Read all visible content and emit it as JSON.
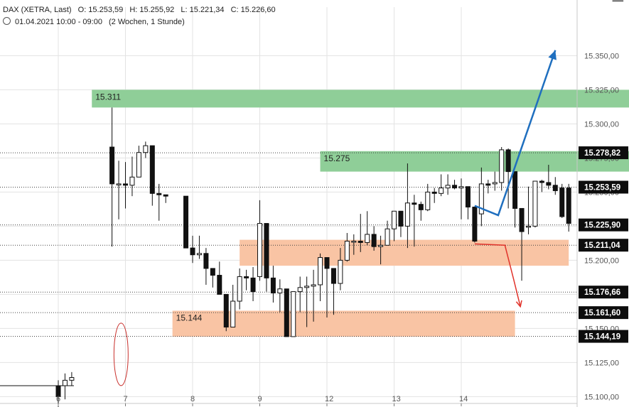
{
  "header": {
    "symbol": "DAX (XETRA, Last)",
    "open": "O: 15.253,59",
    "high": "H: 15.255,92",
    "low": "L: 15.221,34",
    "close": "C: 15.226,60",
    "range": "01.04.2021 10:00 - 09:00",
    "period": "(2 Wochen, 1 Stunde)"
  },
  "chart_data": {
    "type": "candlestick",
    "ylim": [
      15095,
      15370
    ],
    "y_ticks": [
      {
        "value": 15100,
        "label": "15.100,00"
      },
      {
        "value": 15125,
        "label": "15.125,00"
      },
      {
        "value": 15150,
        "label": "15.150,00"
      },
      {
        "value": 15175,
        "label": "15.175,00"
      },
      {
        "value": 15200,
        "label": "15.200,00"
      },
      {
        "value": 15225,
        "label": "15.225,00"
      },
      {
        "value": 15250,
        "label": "15.250,00"
      },
      {
        "value": 15275,
        "label": "15.275,00"
      },
      {
        "value": 15300,
        "label": "15.300,00"
      },
      {
        "value": 15325,
        "label": "15.325,00"
      },
      {
        "value": 15350,
        "label": "15.350,00"
      }
    ],
    "x_ticks": [
      "6",
      "7",
      "8",
      "9",
      "12",
      "13",
      "14"
    ],
    "price_levels": [
      {
        "value": 15278.82,
        "label": "15.278,82"
      },
      {
        "value": 15253.59,
        "label": "15.253,59"
      },
      {
        "value": 15225.9,
        "label": "15.225,90"
      },
      {
        "value": 15211.04,
        "label": "15.211,04"
      },
      {
        "value": 15176.66,
        "label": "15.176,66"
      },
      {
        "value": 15161.6,
        "label": "15.161,60"
      },
      {
        "value": 15144.19,
        "label": "15.144,19"
      }
    ],
    "zones": [
      {
        "from": 15312,
        "to": 15325,
        "color": "#8fce98",
        "label": "15.311",
        "x_from": 0.5,
        "x_to": 8.5
      },
      {
        "from": 15265,
        "to": 15280,
        "color": "#8fce98",
        "label": "15.275",
        "x_from": 3.9,
        "x_to": 8.5
      },
      {
        "from": 15196,
        "to": 15215,
        "color": "#f9c4a4",
        "label": "",
        "x_from": 2.7,
        "x_to": 7.6
      },
      {
        "from": 15144,
        "to": 15163,
        "color": "#f9c4a4",
        "label": "15.144",
        "x_from": 1.7,
        "x_to": 6.8
      }
    ],
    "candles": [
      [
        0.0,
        15108,
        15100,
        15112,
        15085
      ],
      [
        0.1,
        15108,
        15112,
        15117,
        15098
      ],
      [
        0.2,
        15112,
        15114,
        15118,
        15108
      ],
      [
        0.8,
        15283,
        15256,
        15312,
        15210
      ],
      [
        0.9,
        15256,
        15256,
        15273,
        15230
      ],
      [
        1.0,
        15256,
        15255,
        15272,
        15238
      ],
      [
        1.1,
        15255,
        15261,
        15276,
        15247
      ],
      [
        1.2,
        15261,
        15279,
        15284,
        15261
      ],
      [
        1.3,
        15279,
        15284,
        15287,
        15275
      ],
      [
        1.4,
        15284,
        15249,
        15284,
        15240
      ],
      [
        1.5,
        15249,
        15248,
        15256,
        15229
      ],
      [
        1.6,
        15248,
        15247,
        15248,
        15242
      ],
      [
        1.9,
        15247,
        15209,
        15247,
        15209
      ],
      [
        2.0,
        15209,
        15204,
        15218,
        15198
      ],
      [
        2.1,
        15204,
        15205,
        15218,
        15201
      ],
      [
        2.2,
        15205,
        15194,
        15209,
        15182
      ],
      [
        2.3,
        15194,
        15189,
        15194,
        15180
      ],
      [
        2.4,
        15189,
        15175,
        15199,
        15175
      ],
      [
        2.5,
        15175,
        15151,
        15175,
        15148
      ],
      [
        2.6,
        15151,
        15170,
        15182,
        15151
      ],
      [
        2.7,
        15170,
        15188,
        15194,
        15164
      ],
      [
        2.8,
        15188,
        15187,
        15193,
        15178
      ],
      [
        2.9,
        15187,
        15177,
        15195,
        15170
      ],
      [
        3.0,
        15188,
        15227,
        15244,
        15185
      ],
      [
        3.1,
        15227,
        15187,
        15227,
        15177
      ],
      [
        3.2,
        15187,
        15176,
        15196,
        15169
      ],
      [
        3.3,
        15176,
        15179,
        15186,
        15162
      ],
      [
        3.4,
        15179,
        15144,
        15179,
        15144
      ],
      [
        3.5,
        15144,
        15177,
        15177,
        15144
      ],
      [
        3.6,
        15177,
        15180,
        15188,
        15162
      ],
      [
        3.7,
        15180,
        15181,
        15188,
        15151
      ],
      [
        3.8,
        15181,
        15182,
        15193,
        15155
      ],
      [
        3.9,
        15182,
        15202,
        15205,
        15170
      ],
      [
        4.0,
        15202,
        15194,
        15202,
        15158
      ],
      [
        4.1,
        15194,
        15183,
        15194,
        15160
      ],
      [
        4.2,
        15183,
        15200,
        15209,
        15178
      ],
      [
        4.3,
        15200,
        15214,
        15220,
        15199
      ],
      [
        4.4,
        15214,
        15214,
        15219,
        15204
      ],
      [
        4.5,
        15214,
        15213,
        15234,
        15206
      ],
      [
        4.6,
        15213,
        15219,
        15236,
        15211
      ],
      [
        4.7,
        15219,
        15210,
        15225,
        15207
      ],
      [
        4.8,
        15210,
        15211,
        15218,
        15197
      ],
      [
        4.9,
        15211,
        15223,
        15229,
        15211
      ],
      [
        5.0,
        15223,
        15236,
        15236,
        15214
      ],
      [
        5.1,
        15236,
        15225,
        15234,
        15217
      ],
      [
        5.2,
        15225,
        15242,
        15271,
        15209
      ],
      [
        5.3,
        15242,
        15241,
        15248,
        15210
      ],
      [
        5.4,
        15241,
        15237,
        15243,
        15229
      ],
      [
        5.5,
        15237,
        15250,
        15256,
        15236
      ],
      [
        5.6,
        15250,
        15249,
        15253,
        15242
      ],
      [
        5.7,
        15249,
        15253,
        15263,
        15247
      ],
      [
        5.8,
        15253,
        15255,
        15263,
        15248
      ],
      [
        5.9,
        15255,
        15253,
        15259,
        15252
      ],
      [
        6.0,
        15253,
        15254,
        15260,
        15230
      ],
      [
        6.1,
        15254,
        15239,
        15254,
        15230
      ],
      [
        6.2,
        15239,
        15214,
        15239,
        15213
      ],
      [
        6.3,
        15234,
        15256,
        15268,
        15225
      ],
      [
        6.4,
        15256,
        15255,
        15259,
        15249
      ],
      [
        6.5,
        15256,
        15257,
        15265,
        15251
      ],
      [
        6.6,
        15257,
        15281,
        15283,
        15251
      ],
      [
        6.7,
        15281,
        15265,
        15282,
        15238
      ],
      [
        6.8,
        15265,
        15238,
        15265,
        15224
      ],
      [
        6.9,
        15238,
        15221,
        15238,
        15185
      ],
      [
        7.0,
        15225,
        15225,
        15254,
        15219
      ],
      [
        7.1,
        15225,
        15258,
        15258,
        15224
      ],
      [
        7.2,
        15258,
        15257,
        15259,
        15250
      ],
      [
        7.3,
        15257,
        15255,
        15270,
        15252
      ],
      [
        7.4,
        15255,
        15251,
        15261,
        15248
      ],
      [
        7.5,
        15253,
        15232,
        15256,
        15231
      ],
      [
        7.6,
        15253,
        15227,
        15256,
        15221
      ]
    ],
    "annotations": [
      {
        "type": "arrow-line",
        "color": "#1f6fbf",
        "points": [
          [
            6.2,
            15240
          ],
          [
            6.55,
            15233
          ],
          [
            7.4,
            15354
          ]
        ]
      },
      {
        "type": "arrow-line",
        "color": "#e1332b",
        "points": [
          [
            6.2,
            15212
          ],
          [
            6.65,
            15211
          ],
          [
            6.78,
            15186
          ],
          [
            6.88,
            15166
          ]
        ]
      },
      {
        "type": "ellipse",
        "color": "#c9302c",
        "center": [
          6.85,
          15131
        ],
        "rx": 0.12,
        "ry": 10
      }
    ]
  }
}
